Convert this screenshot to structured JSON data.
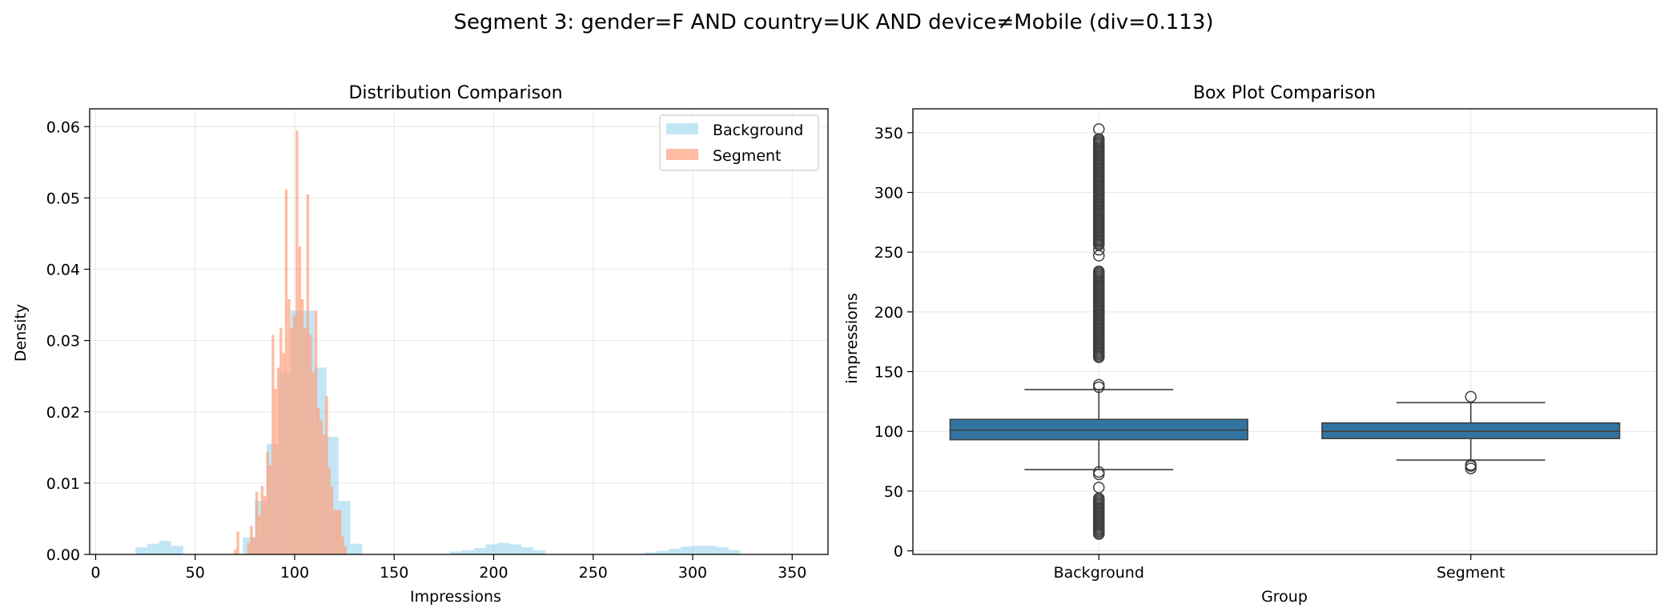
{
  "figure": {
    "suptitle": "Segment 3: gender=F AND country=UK AND device≠Mobile (div=0.113)"
  },
  "chart_data": [
    {
      "type": "histogram",
      "title": "Distribution Comparison",
      "xlabel": "Impressions",
      "ylabel": "Density",
      "xlim": [
        -3,
        368
      ],
      "ylim": [
        0,
        0.0625
      ],
      "xticks": [
        0,
        50,
        100,
        150,
        200,
        250,
        300,
        350
      ],
      "yticks": [
        0.0,
        0.01,
        0.02,
        0.03,
        0.04,
        0.05,
        0.06
      ],
      "grid": true,
      "legend_position": "upper right",
      "series": [
        {
          "name": "Background",
          "color": "#87ceeb",
          "opacity": 0.5,
          "bin_width": 6,
          "bins": [
            [
              20,
              0.001
            ],
            [
              26,
              0.0015
            ],
            [
              32,
              0.0019
            ],
            [
              38,
              0.0012
            ],
            [
              74,
              0.0024
            ],
            [
              80,
              0.0075
            ],
            [
              86,
              0.0155
            ],
            [
              92,
              0.0255
            ],
            [
              98,
              0.0342
            ],
            [
              104,
              0.0342
            ],
            [
              110,
              0.0262
            ],
            [
              116,
              0.0165
            ],
            [
              122,
              0.0075
            ],
            [
              128,
              0.0015
            ],
            [
              178,
              0.0004
            ],
            [
              184,
              0.0006
            ],
            [
              190,
              0.0009
            ],
            [
              196,
              0.0014
            ],
            [
              202,
              0.0016
            ],
            [
              208,
              0.0014
            ],
            [
              214,
              0.001
            ],
            [
              220,
              0.0006
            ],
            [
              276,
              0.0003
            ],
            [
              282,
              0.0005
            ],
            [
              288,
              0.0008
            ],
            [
              294,
              0.0011
            ],
            [
              300,
              0.0012
            ],
            [
              306,
              0.0012
            ],
            [
              312,
              0.001
            ],
            [
              318,
              0.0006
            ]
          ]
        },
        {
          "name": "Segment",
          "color": "#ffa07a",
          "opacity": 0.7,
          "bin_width": 1.35,
          "bins": [
            [
              69.5,
              0.0007
            ],
            [
              70.8,
              0.0032
            ],
            [
              76.2,
              0.0016
            ],
            [
              77.6,
              0.004
            ],
            [
              78.9,
              0.0024
            ],
            [
              80.3,
              0.0088
            ],
            [
              81.6,
              0.0055
            ],
            [
              83.0,
              0.0096
            ],
            [
              84.3,
              0.0082
            ],
            [
              85.7,
              0.0144
            ],
            [
              87.0,
              0.0125
            ],
            [
              88.4,
              0.0308
            ],
            [
              89.7,
              0.0232
            ],
            [
              91.1,
              0.0262
            ],
            [
              92.4,
              0.0318
            ],
            [
              93.8,
              0.0282
            ],
            [
              95.1,
              0.0512
            ],
            [
              96.5,
              0.0358
            ],
            [
              97.8,
              0.0318
            ],
            [
              99.2,
              0.0335
            ],
            [
              100.5,
              0.0595
            ],
            [
              101.9,
              0.0432
            ],
            [
              103.2,
              0.0358
            ],
            [
              104.6,
              0.0318
            ],
            [
              105.9,
              0.0505
            ],
            [
              107.3,
              0.0308
            ],
            [
              108.6,
              0.0255
            ],
            [
              110.0,
              0.0342
            ],
            [
              111.3,
              0.0205
            ],
            [
              112.7,
              0.0188
            ],
            [
              114.0,
              0.0168
            ],
            [
              115.4,
              0.0222
            ],
            [
              116.7,
              0.0122
            ],
            [
              118.1,
              0.0095
            ],
            [
              119.4,
              0.0062
            ],
            [
              120.8,
              0.0062
            ],
            [
              122.1,
              0.0062
            ],
            [
              123.5,
              0.0025
            ],
            [
              124.8,
              0.0012
            ]
          ]
        }
      ]
    },
    {
      "type": "box",
      "title": "Box Plot Comparison",
      "xlabel": "Group",
      "ylabel": "impressions",
      "ylim": [
        -3,
        370
      ],
      "yticks": [
        0,
        50,
        100,
        150,
        200,
        250,
        300,
        350
      ],
      "categories": [
        "Background",
        "Segment"
      ],
      "grid": true,
      "color": "#3274a1",
      "boxes": [
        {
          "name": "Background",
          "whisker_low": 68,
          "q1": 93,
          "median": 101,
          "q3": 110,
          "whisker_high": 135,
          "outliers_ranges": [
            [
              14,
              45
            ],
            [
              162,
              235
            ],
            [
              256,
              345
            ]
          ],
          "outliers": [
            53,
            64,
            66,
            137,
            139,
            247,
            252,
            353
          ]
        },
        {
          "name": "Segment",
          "whisker_low": 76,
          "q1": 94,
          "median": 100,
          "q3": 107,
          "whisker_high": 124,
          "outliers": [
            69,
            71,
            72,
            129
          ]
        }
      ]
    }
  ]
}
